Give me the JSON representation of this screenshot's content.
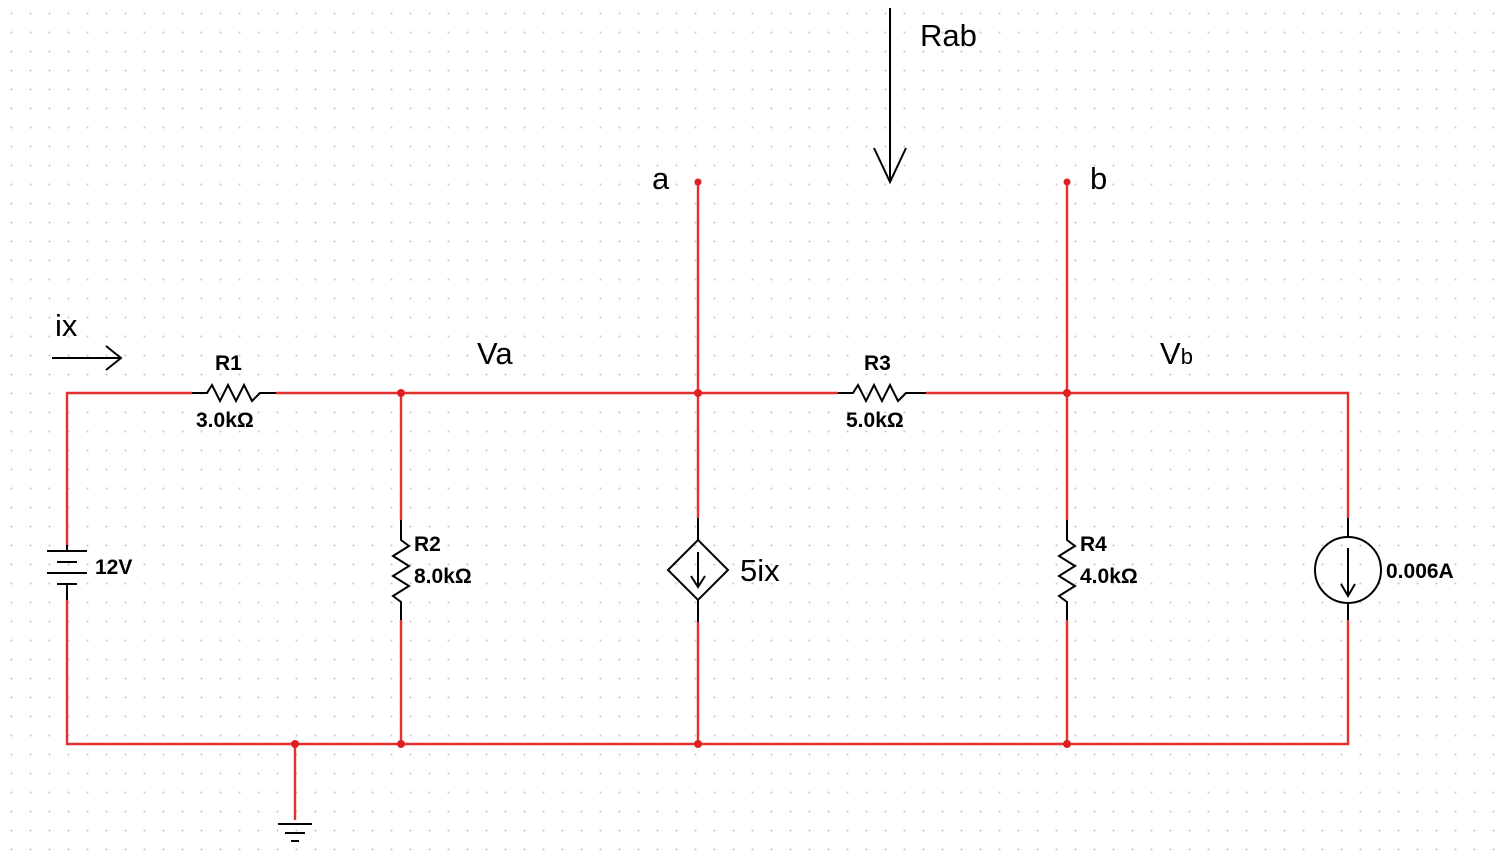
{
  "circuit": {
    "current_arrow": {
      "label": "ix"
    },
    "measurement_arrow": {
      "label": "Rab"
    },
    "terminals": {
      "a": "a",
      "b": "b"
    },
    "node_labels": {
      "va": "Va",
      "vb_main": "V",
      "vb_sub": "b"
    },
    "r1": {
      "name": "R1",
      "value": "3.0kΩ"
    },
    "r2": {
      "name": "R2",
      "value": "8.0kΩ"
    },
    "r3": {
      "name": "R3",
      "value": "5.0kΩ"
    },
    "r4": {
      "name": "R4",
      "value": "4.0kΩ"
    },
    "battery": {
      "value": "12V"
    },
    "dependent_source": {
      "label": "5ix"
    },
    "current_source": {
      "value": "0.006A"
    }
  },
  "colors": {
    "wire": "#e53030",
    "node": "#e02020",
    "component": "#000000",
    "grid_dot": "#c9c9c9",
    "background": "#ffffff"
  }
}
